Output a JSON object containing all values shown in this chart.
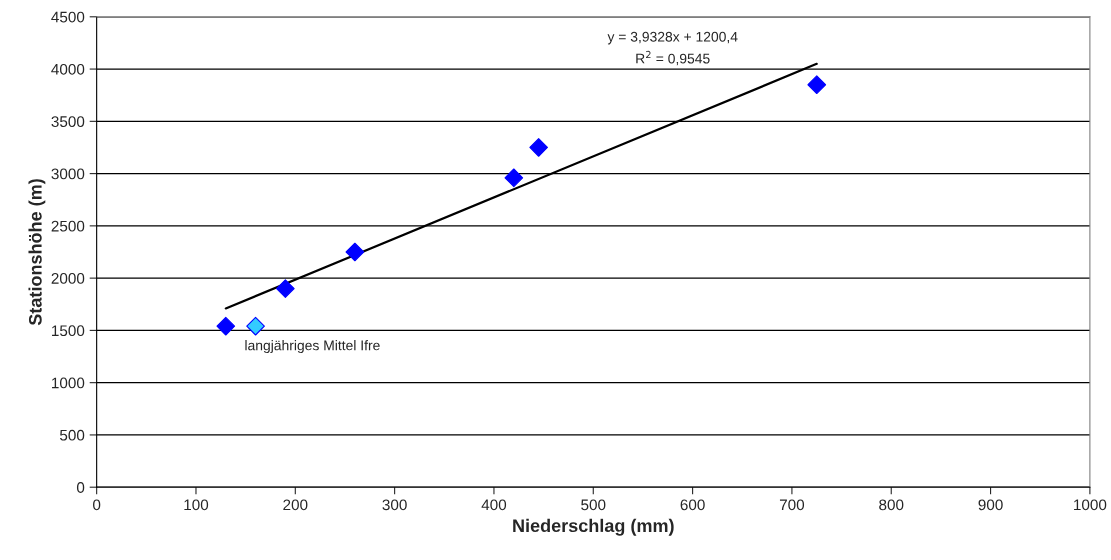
{
  "chart_data": {
    "type": "scatter",
    "xlabel": "Niederschlag (mm)",
    "ylabel": "Stationshöhe (m)",
    "xlim": [
      0,
      1000
    ],
    "xticks": [
      0,
      100,
      200,
      300,
      400,
      500,
      600,
      700,
      800,
      900,
      1000
    ],
    "ylim": [
      0,
      4500
    ],
    "yticks": [
      0,
      500,
      1000,
      1500,
      2000,
      2500,
      3000,
      3500,
      4000,
      4500
    ],
    "grid": "y",
    "legend": false,
    "series": [
      {
        "marker": "diamond",
        "color": "#0000ff",
        "x": [
          130,
          190,
          260,
          420,
          445,
          725
        ],
        "values": [
          1540,
          1900,
          2250,
          2960,
          3250,
          3850
        ]
      },
      {
        "marker": "diamond",
        "color": "#33ccff",
        "x": [
          160
        ],
        "values": [
          1540
        ]
      },
      {
        "type": "line",
        "color": "#000000",
        "x": [
          130,
          725
        ],
        "values": [
          1710,
          4050
        ]
      }
    ],
    "annotations": [
      {
        "text": "langjähriges Mittel Ifre",
        "x": 160,
        "y": 1540
      },
      "y = 3,9328x + 1200,4",
      "R$^{2}$ = 0,9545"
    ]
  }
}
